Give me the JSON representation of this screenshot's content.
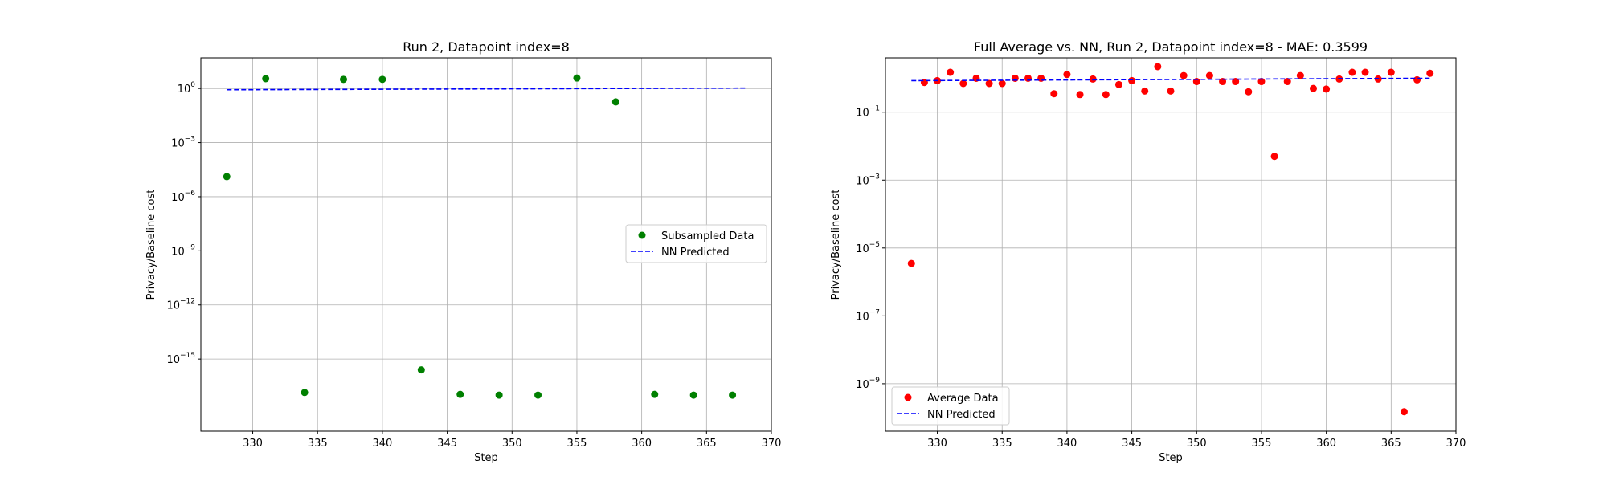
{
  "chart_data": [
    {
      "type": "scatter",
      "title": "Run 2, Datapoint index=8",
      "xlabel": "Step",
      "ylabel": "Privacy/Baseline cost",
      "xlim": [
        326,
        370
      ],
      "ylim": [
        1e-19,
        50
      ],
      "yscale": "log",
      "xticks": [
        330,
        335,
        340,
        345,
        350,
        355,
        360,
        365,
        370
      ],
      "yticks": [
        {
          "value": 1,
          "base": "10",
          "exp": "0"
        },
        {
          "value": 0.001,
          "base": "10",
          "exp": "−3"
        },
        {
          "value": 1e-06,
          "base": "10",
          "exp": "−6"
        },
        {
          "value": 1e-09,
          "base": "10",
          "exp": "−9"
        },
        {
          "value": 1e-12,
          "base": "10",
          "exp": "−12"
        },
        {
          "value": 1e-15,
          "base": "10",
          "exp": "−15"
        }
      ],
      "grid": true,
      "legend_position": "center-right",
      "series": [
        {
          "name": "Subsampled Data",
          "kind": "points",
          "color": "#008000",
          "x": [
            328,
            331,
            334,
            337,
            340,
            343,
            346,
            349,
            352,
            355,
            358,
            361,
            364,
            367
          ],
          "y": [
            1.3e-05,
            3.5,
            1.4e-17,
            3.2,
            3.2,
            2.5e-16,
            1.1e-17,
            1e-17,
            1e-17,
            3.8,
            0.18,
            1.1e-17,
            1e-17,
            1e-17
          ]
        },
        {
          "name": "NN Predicted",
          "kind": "dashed-line",
          "color": "#0000ff",
          "x": [
            328,
            368
          ],
          "y": [
            0.85,
            1.05
          ]
        }
      ]
    },
    {
      "type": "scatter",
      "title": "Full Average vs. NN, Run 2, Datapoint index=8 - MAE: 0.3599",
      "xlabel": "Step",
      "ylabel": "Privacy/Baseline cost",
      "xlim": [
        326,
        370
      ],
      "ylim": [
        4e-11,
        4
      ],
      "yscale": "log",
      "xticks": [
        330,
        335,
        340,
        345,
        350,
        355,
        360,
        365,
        370
      ],
      "yticks": [
        {
          "value": 0.1,
          "base": "10",
          "exp": "−1"
        },
        {
          "value": 0.001,
          "base": "10",
          "exp": "−3"
        },
        {
          "value": 1e-05,
          "base": "10",
          "exp": "−5"
        },
        {
          "value": 1e-07,
          "base": "10",
          "exp": "−7"
        },
        {
          "value": 1e-09,
          "base": "10",
          "exp": "−9"
        }
      ],
      "grid": true,
      "legend_position": "lower-left",
      "series": [
        {
          "name": "Average Data",
          "kind": "points",
          "color": "#ff0000",
          "x": [
            328,
            329,
            330,
            331,
            332,
            333,
            334,
            335,
            336,
            337,
            338,
            339,
            340,
            341,
            342,
            343,
            344,
            345,
            346,
            347,
            348,
            349,
            350,
            351,
            352,
            353,
            354,
            355,
            356,
            357,
            358,
            359,
            360,
            361,
            362,
            363,
            364,
            365,
            366,
            367,
            368
          ],
          "y": [
            3.5e-06,
            0.75,
            0.85,
            1.5,
            0.7,
            1.0,
            0.7,
            0.7,
            1.0,
            1.0,
            1.0,
            0.35,
            1.3,
            0.33,
            0.95,
            0.33,
            0.65,
            0.85,
            0.42,
            2.2,
            0.42,
            1.2,
            0.8,
            1.2,
            0.8,
            0.8,
            0.4,
            0.8,
            0.005,
            0.8,
            1.2,
            0.5,
            0.48,
            0.95,
            1.5,
            1.5,
            0.95,
            1.5,
            1.5e-10,
            0.9,
            1.4
          ]
        },
        {
          "name": "NN Predicted",
          "kind": "dashed-line",
          "color": "#0000ff",
          "x": [
            328,
            368
          ],
          "y": [
            0.85,
            1.0
          ]
        }
      ]
    }
  ]
}
